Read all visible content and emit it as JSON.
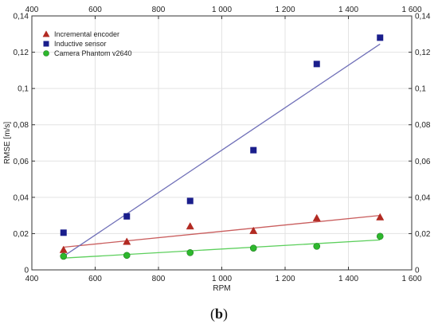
{
  "chart_data": {
    "type": "scatter",
    "title": "",
    "xlabel": "RPM",
    "ylabel": "RMSE [m/s]",
    "xlim": [
      400,
      1600
    ],
    "ylim": [
      0,
      0.14
    ],
    "x_ticks": [
      400,
      600,
      800,
      1000,
      1200,
      1400,
      1600
    ],
    "x_tick_labels": [
      "400",
      "600",
      "800",
      "1 000",
      "1 200",
      "1 400",
      "1 600"
    ],
    "y_ticks": [
      0,
      0.02,
      0.04,
      0.06,
      0.08,
      0.1,
      0.12,
      0.14
    ],
    "y_tick_labels": [
      "0",
      "0,02",
      "0,04",
      "0,06",
      "0,08",
      "0,1",
      "0,12",
      "0,14"
    ],
    "grid": true,
    "legend_position": "top-left",
    "series": [
      {
        "name": "Incremental encoder",
        "marker": "triangle",
        "color": "#b22a22",
        "x": [
          500,
          700,
          900,
          1100,
          1300,
          1500
        ],
        "y": [
          0.011,
          0.0155,
          0.024,
          0.0215,
          0.0285,
          0.029
        ],
        "trendline": [
          [
            500,
            0.0125
          ],
          [
            1500,
            0.03
          ]
        ],
        "trend_color": "#c95d5d"
      },
      {
        "name": "Inductive sensor",
        "marker": "square",
        "color": "#1a1e8c",
        "x": [
          500,
          700,
          900,
          1100,
          1300,
          1500
        ],
        "y": [
          0.0205,
          0.0295,
          0.038,
          0.066,
          0.1135,
          0.128
        ],
        "trendline": [
          [
            500,
            0.0075
          ],
          [
            1500,
            0.1245
          ]
        ],
        "trend_color": "#7070b8"
      },
      {
        "name": "Camera Phantom v2640",
        "marker": "circle",
        "color": "#2db82d",
        "x": [
          500,
          700,
          900,
          1100,
          1300,
          1500
        ],
        "y": [
          0.0075,
          0.008,
          0.0095,
          0.012,
          0.013,
          0.0185
        ],
        "trendline": [
          [
            500,
            0.0065
          ],
          [
            1500,
            0.0165
          ]
        ],
        "trend_color": "#5ccf5c"
      }
    ]
  },
  "caption": {
    "open": "(",
    "letter": "b",
    "close": ")"
  }
}
